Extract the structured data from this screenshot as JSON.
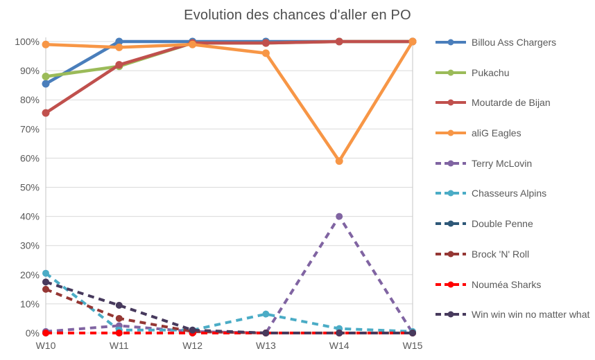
{
  "title": "Evolution des chances d'aller en PO",
  "colors": {
    "background": "#ffffff",
    "title_text": "#4d4d4d",
    "axis_text": "#595959",
    "grid_line": "#d9d9d9",
    "axis_line": "#c6c6c6",
    "legend_text": "#595959"
  },
  "chart_data": {
    "type": "line",
    "title": "Evolution des chances d'aller en PO",
    "xlabel": "",
    "ylabel": "",
    "ylim": [
      0,
      100
    ],
    "grid": true,
    "legend_position": "right",
    "categories": [
      "W10",
      "W11",
      "W12",
      "W13",
      "W14",
      "W15"
    ],
    "y_ticks": [
      {
        "value": 0,
        "label": "0%"
      },
      {
        "value": 10,
        "label": "10%"
      },
      {
        "value": 20,
        "label": "20%"
      },
      {
        "value": 30,
        "label": "30%"
      },
      {
        "value": 40,
        "label": "40%"
      },
      {
        "value": 50,
        "label": "50%"
      },
      {
        "value": 60,
        "label": "60%"
      },
      {
        "value": 70,
        "label": "70%"
      },
      {
        "value": 80,
        "label": "80%"
      },
      {
        "value": 90,
        "label": "90%"
      },
      {
        "value": 100,
        "label": "100%"
      }
    ],
    "series": [
      {
        "name": "Billou Ass Chargers",
        "color": "#4a7ebb",
        "dashed": false,
        "values": [
          85.5,
          100,
          100,
          100,
          100,
          100
        ]
      },
      {
        "name": "Pukachu",
        "color": "#9bbb59",
        "dashed": false,
        "values": [
          88,
          91.5,
          99.5,
          99.5,
          100,
          100
        ]
      },
      {
        "name": "Moutarde de Bijan",
        "color": "#c0504d",
        "dashed": false,
        "values": [
          75.5,
          92,
          99.5,
          99.5,
          100,
          100
        ]
      },
      {
        "name": "aliG Eagles",
        "color": "#f79646",
        "dashed": false,
        "values": [
          99,
          98,
          99,
          96,
          59,
          100
        ]
      },
      {
        "name": "Terry McLovin",
        "color": "#8064a2",
        "dashed": true,
        "values": [
          0.5,
          2.5,
          0.5,
          0,
          40,
          0
        ]
      },
      {
        "name": "Chasseurs Alpins",
        "color": "#4bacc6",
        "dashed": true,
        "values": [
          20.5,
          1,
          1,
          6.5,
          1.5,
          0.5
        ]
      },
      {
        "name": "Double Penne",
        "color": "#2e5878",
        "dashed": true,
        "values": [
          0,
          0,
          0,
          0,
          0,
          0
        ]
      },
      {
        "name": "Brock 'N' Roll",
        "color": "#953734",
        "dashed": true,
        "values": [
          15,
          5,
          0.5,
          0,
          0,
          0
        ]
      },
      {
        "name": "Nouméa Sharks",
        "color": "#ff0000",
        "dashed": true,
        "values": [
          0,
          0,
          0,
          0,
          0,
          0
        ]
      },
      {
        "name": "Win win win no matter what",
        "color": "#473a5d",
        "dashed": true,
        "values": [
          17.5,
          9.5,
          1,
          0,
          0,
          0
        ]
      }
    ]
  }
}
